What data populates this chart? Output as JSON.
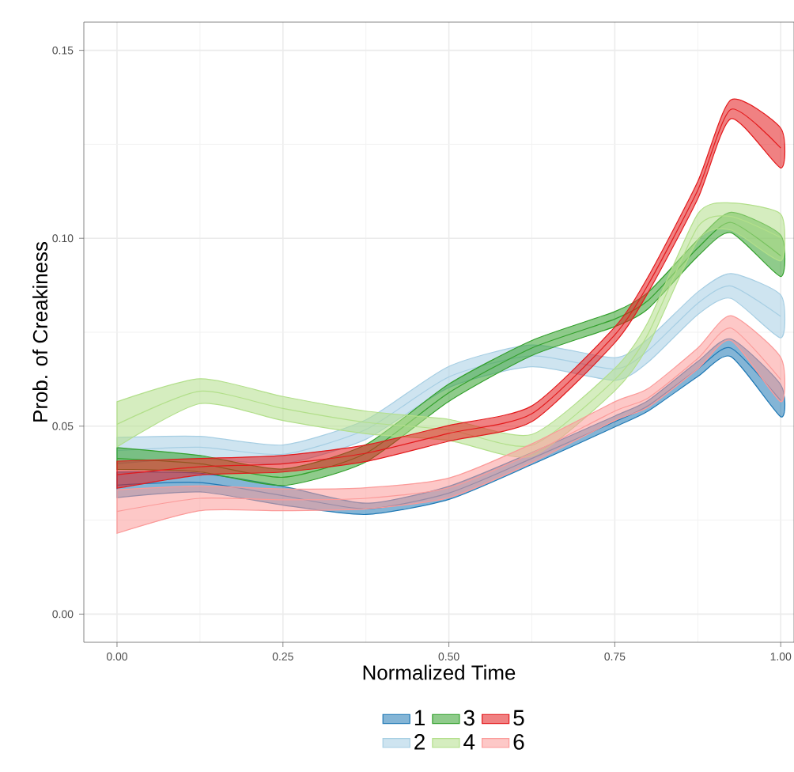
{
  "chart_data": {
    "type": "line",
    "xlabel": "Normalized Time",
    "ylabel": "Prob. of Creakiness",
    "xlim": [
      -0.05,
      1.02
    ],
    "ylim": [
      -0.0075,
      0.1575
    ],
    "xticks": [
      {
        "value": 0,
        "label": "0.00"
      },
      {
        "value": 0.25,
        "label": "0.25"
      },
      {
        "value": 0.5,
        "label": "0.50"
      },
      {
        "value": 0.75,
        "label": "0.75"
      },
      {
        "value": 1,
        "label": "1.00"
      }
    ],
    "yticks": [
      {
        "value": 0,
        "label": "0.00"
      },
      {
        "value": 0.05,
        "label": "0.05"
      },
      {
        "value": 0.1,
        "label": "0.10"
      },
      {
        "value": 0.15,
        "label": "0.15"
      }
    ],
    "grid": true,
    "legend": "bottom",
    "x": [
      0,
      0.125,
      0.25,
      0.375,
      0.5,
      0.625,
      0.75,
      0.8,
      0.875,
      0.925,
      1.0
    ],
    "series": [
      {
        "name": "1",
        "color": "#1f78b4",
        "values": [
          0.0343,
          0.035,
          0.0315,
          0.028,
          0.0322,
          0.0414,
          0.0512,
          0.0554,
          0.0652,
          0.0708,
          0.0568
        ],
        "lower": [
          0.031,
          0.0325,
          0.029,
          0.0265,
          0.0305,
          0.0398,
          0.0498,
          0.054,
          0.0632,
          0.0685,
          0.0525
        ],
        "upper": [
          0.0378,
          0.0375,
          0.034,
          0.0295,
          0.034,
          0.043,
          0.0527,
          0.0568,
          0.0672,
          0.0732,
          0.061
        ]
      },
      {
        "name": "2",
        "color": "#a6cee3",
        "values": [
          0.0435,
          0.0444,
          0.0425,
          0.0491,
          0.0631,
          0.0687,
          0.0652,
          0.0701,
          0.0827,
          0.0873,
          0.0792
        ],
        "lower": [
          0.04,
          0.0415,
          0.04,
          0.0465,
          0.0603,
          0.0658,
          0.0622,
          0.067,
          0.0797,
          0.084,
          0.0735
        ],
        "upper": [
          0.047,
          0.0473,
          0.045,
          0.0517,
          0.0659,
          0.0716,
          0.0682,
          0.0732,
          0.0857,
          0.0906,
          0.0849
        ]
      },
      {
        "name": "3",
        "color": "#33a02c",
        "values": [
          0.0414,
          0.04,
          0.0364,
          0.0428,
          0.0589,
          0.0708,
          0.0785,
          0.0834,
          0.0974,
          0.1042,
          0.0953
        ],
        "lower": [
          0.0385,
          0.0378,
          0.0342,
          0.0405,
          0.0566,
          0.0688,
          0.0765,
          0.0812,
          0.0952,
          0.1015,
          0.0898
        ],
        "upper": [
          0.0443,
          0.0422,
          0.0386,
          0.0451,
          0.0612,
          0.0728,
          0.0805,
          0.0856,
          0.0996,
          0.1069,
          0.1008
        ]
      },
      {
        "name": "4",
        "color": "#b2df8a",
        "values": [
          0.0505,
          0.0593,
          0.0547,
          0.051,
          0.049,
          0.0449,
          0.0624,
          0.0745,
          0.103,
          0.1058,
          0.1002
        ],
        "lower": [
          0.0445,
          0.056,
          0.0515,
          0.048,
          0.0462,
          0.042,
          0.0594,
          0.0713,
          0.0995,
          0.1022,
          0.094
        ],
        "upper": [
          0.0565,
          0.0626,
          0.0579,
          0.054,
          0.0518,
          0.0478,
          0.0654,
          0.0777,
          0.1065,
          0.1094,
          0.1064
        ]
      },
      {
        "name": "5",
        "color": "#e31a1c",
        "values": [
          0.0371,
          0.0392,
          0.04,
          0.0428,
          0.0481,
          0.0533,
          0.0743,
          0.0876,
          0.1128,
          0.1343,
          0.124
        ],
        "lower": [
          0.0335,
          0.037,
          0.0378,
          0.0406,
          0.046,
          0.0512,
          0.0722,
          0.0855,
          0.1105,
          0.1318,
          0.1187
        ],
        "upper": [
          0.0407,
          0.0414,
          0.0422,
          0.045,
          0.0502,
          0.0554,
          0.0764,
          0.0897,
          0.1151,
          0.1368,
          0.1293
        ]
      },
      {
        "name": "6",
        "color": "#fb9a99",
        "values": [
          0.0273,
          0.0308,
          0.0304,
          0.0308,
          0.0336,
          0.0428,
          0.054,
          0.0575,
          0.068,
          0.0761,
          0.0624
        ],
        "lower": [
          0.0215,
          0.0275,
          0.0275,
          0.028,
          0.031,
          0.0403,
          0.0515,
          0.055,
          0.0652,
          0.0728,
          0.0565
        ],
        "upper": [
          0.0331,
          0.0341,
          0.0333,
          0.0336,
          0.0362,
          0.0453,
          0.0565,
          0.06,
          0.0708,
          0.0794,
          0.0683
        ]
      }
    ]
  }
}
